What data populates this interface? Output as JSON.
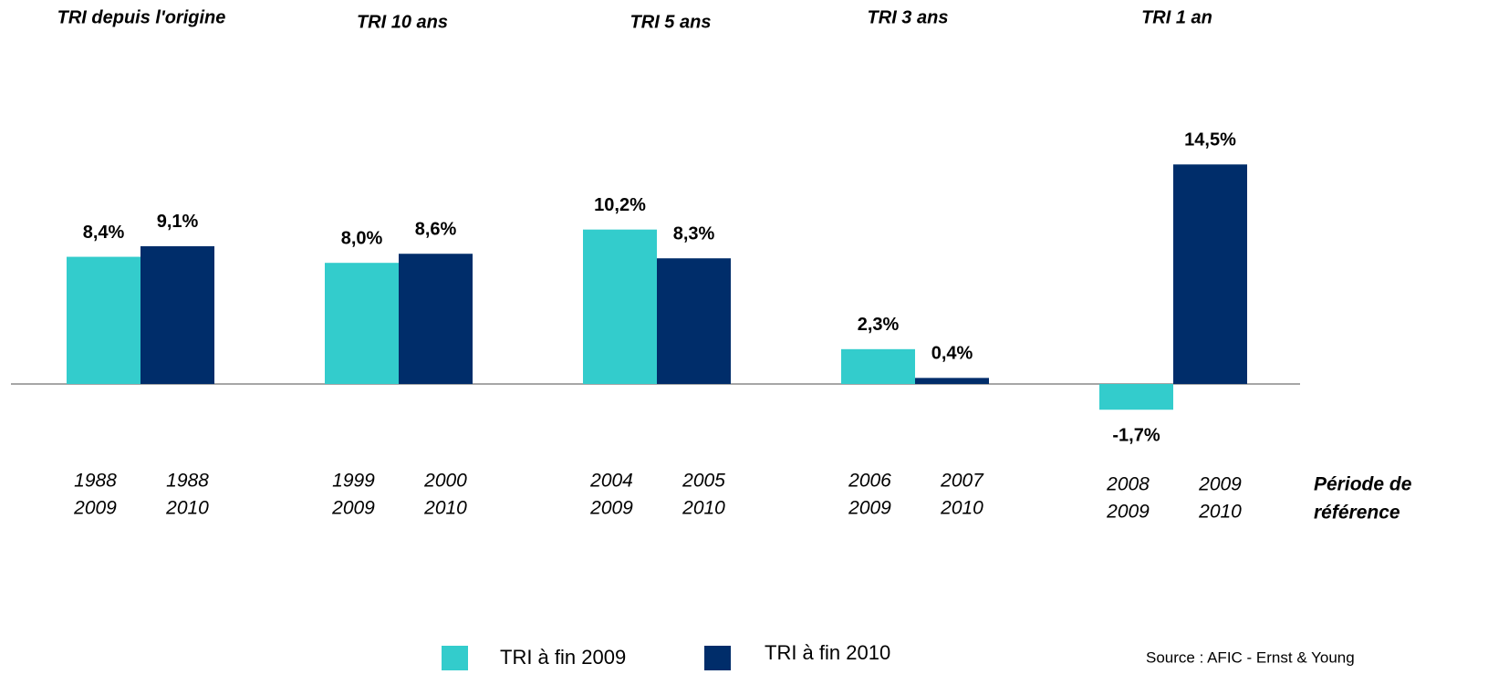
{
  "chart_data": {
    "type": "bar",
    "categories": [
      "TRI depuis l'origine",
      "TRI 10 ans",
      "TRI 5 ans",
      "TRI 3 ans",
      "TRI 1 an"
    ],
    "series": [
      {
        "name": "TRI à fin 2009",
        "color": "#33cccc",
        "values": [
          8.4,
          8.0,
          10.2,
          2.3,
          -1.7
        ],
        "value_labels": [
          "8,4%",
          "8,0%",
          "10,2%",
          "2,3%",
          "-1,7%"
        ],
        "periods": [
          [
            "1988",
            "2009"
          ],
          [
            "1999",
            "2009"
          ],
          [
            "2004",
            "2009"
          ],
          [
            "2006",
            "2009"
          ],
          [
            "2008",
            "2009"
          ]
        ]
      },
      {
        "name": "TRI à fin 2010",
        "color": "#002d6a",
        "values": [
          9.1,
          8.6,
          8.3,
          0.4,
          14.5
        ],
        "value_labels": [
          "9,1%",
          "8,6%",
          "8,3%",
          "0,4%",
          "14,5%"
        ],
        "periods": [
          [
            "1988",
            "2010"
          ],
          [
            "2000",
            "2010"
          ],
          [
            "2005",
            "2010"
          ],
          [
            "2007",
            "2010"
          ],
          [
            "2009",
            "2010"
          ]
        ]
      }
    ],
    "period_axis_label": [
      "Période de",
      "référence"
    ],
    "source": "Source : AFIC - Ernst & Young"
  }
}
